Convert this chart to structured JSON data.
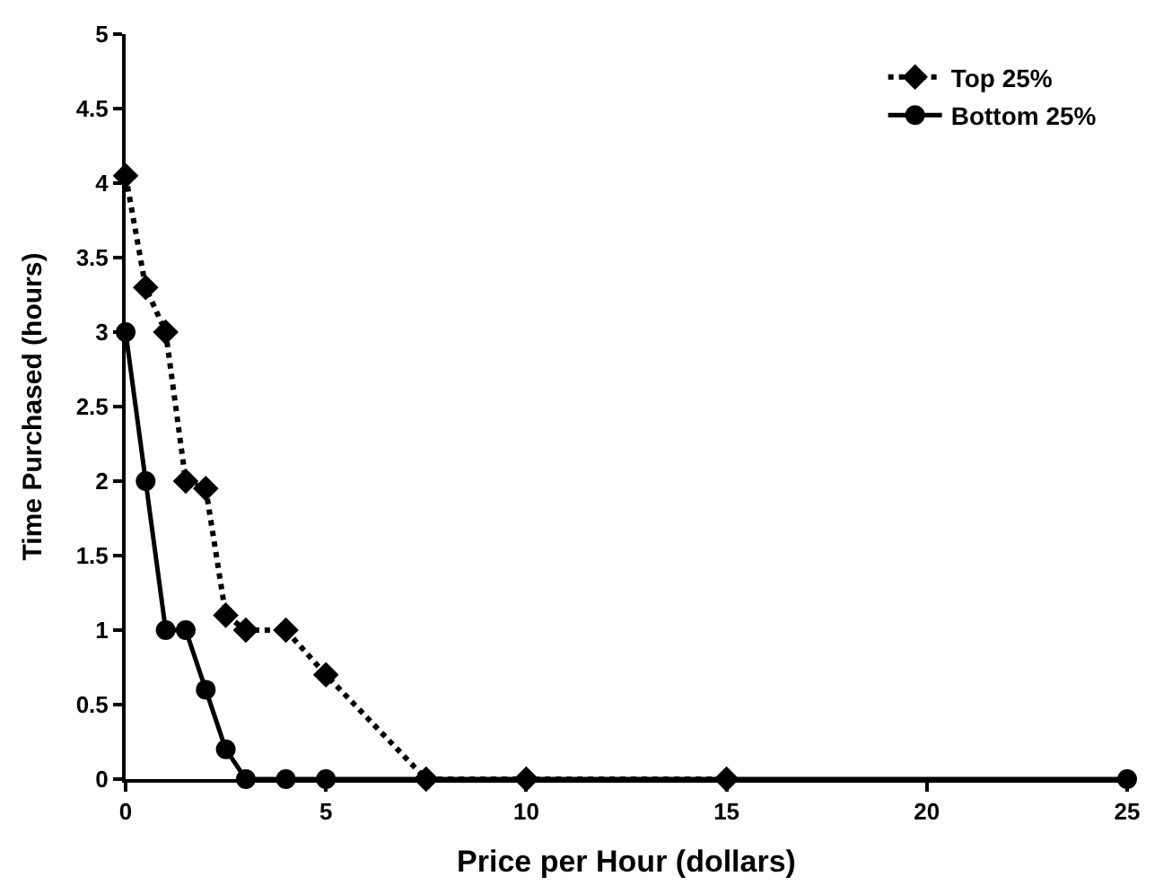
{
  "chart_data": {
    "type": "line",
    "xlabel": "Price per Hour (dollars)",
    "ylabel": "Time Purchased (hours)",
    "xlim": [
      0,
      25
    ],
    "xticks": [
      0,
      5,
      10,
      15,
      20,
      25
    ],
    "ylim": [
      0,
      5
    ],
    "yticks": [
      0,
      0.5,
      1,
      1.5,
      2,
      2.5,
      3,
      3.5,
      4,
      4.5,
      5
    ],
    "legend": "top right",
    "series": [
      {
        "name": "Top 25%",
        "color": "#000000",
        "line_style": "dotted",
        "marker": "diamond",
        "x": [
          0,
          0.5,
          1,
          1.5,
          2,
          2.5,
          3,
          4,
          5,
          7.5,
          10,
          15
        ],
        "values": [
          4.05,
          3.3,
          3.0,
          2.0,
          1.95,
          1.1,
          1.0,
          1.0,
          0.7,
          0,
          0,
          0
        ]
      },
      {
        "name": "Bottom 25%",
        "color": "#000000",
        "line_style": "solid",
        "marker": "circle",
        "x": [
          0,
          0.5,
          1,
          1.5,
          2,
          2.5,
          3,
          4,
          5,
          25
        ],
        "values": [
          3.0,
          2.0,
          1.0,
          1.0,
          0.6,
          0.2,
          0,
          0,
          0,
          0
        ]
      }
    ]
  }
}
